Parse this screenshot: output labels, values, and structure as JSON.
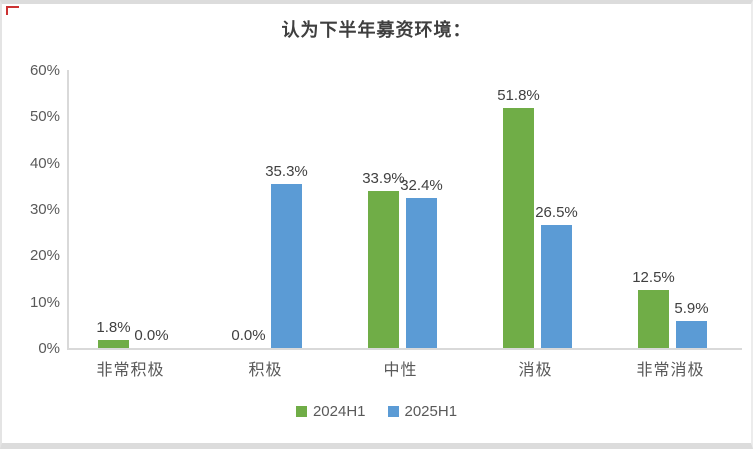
{
  "title": "认为下半年募资环境：",
  "chart_data": {
    "type": "bar",
    "title": "认为下半年募资环境：",
    "categories": [
      "非常积极",
      "积极",
      "中性",
      "消极",
      "非常消极"
    ],
    "series": [
      {
        "name": "2024H1",
        "color": "#70AD47",
        "values": [
          1.8,
          0.0,
          33.9,
          51.8,
          12.5
        ]
      },
      {
        "name": "2025H1",
        "color": "#5B9BD5",
        "values": [
          0.0,
          35.3,
          32.4,
          26.5,
          5.9
        ]
      }
    ],
    "value_labels": [
      [
        "1.8%",
        "0.0%",
        "33.9%",
        "51.8%",
        "12.5%"
      ],
      [
        "0.0%",
        "35.3%",
        "32.4%",
        "26.5%",
        "5.9%"
      ]
    ],
    "xlabel": "",
    "ylabel": "",
    "ylim": [
      0,
      60
    ],
    "yticks": [
      "0%",
      "10%",
      "20%",
      "30%",
      "40%",
      "50%",
      "60%"
    ],
    "grid": false,
    "legend_position": "bottom"
  },
  "legend": {
    "items": [
      {
        "label": "2024H1",
        "color": "#70AD47"
      },
      {
        "label": "2025H1",
        "color": "#5B9BD5"
      }
    ]
  },
  "colors": {
    "series_2024": "#70AD47",
    "series_2025": "#5B9BD5",
    "axis_line": "#d9d9d9",
    "frame": "#dcdcdc",
    "title_text": "#3f3f3f",
    "label_text": "#404040",
    "tick_text": "#595959",
    "corner_mark": "#c00000"
  }
}
